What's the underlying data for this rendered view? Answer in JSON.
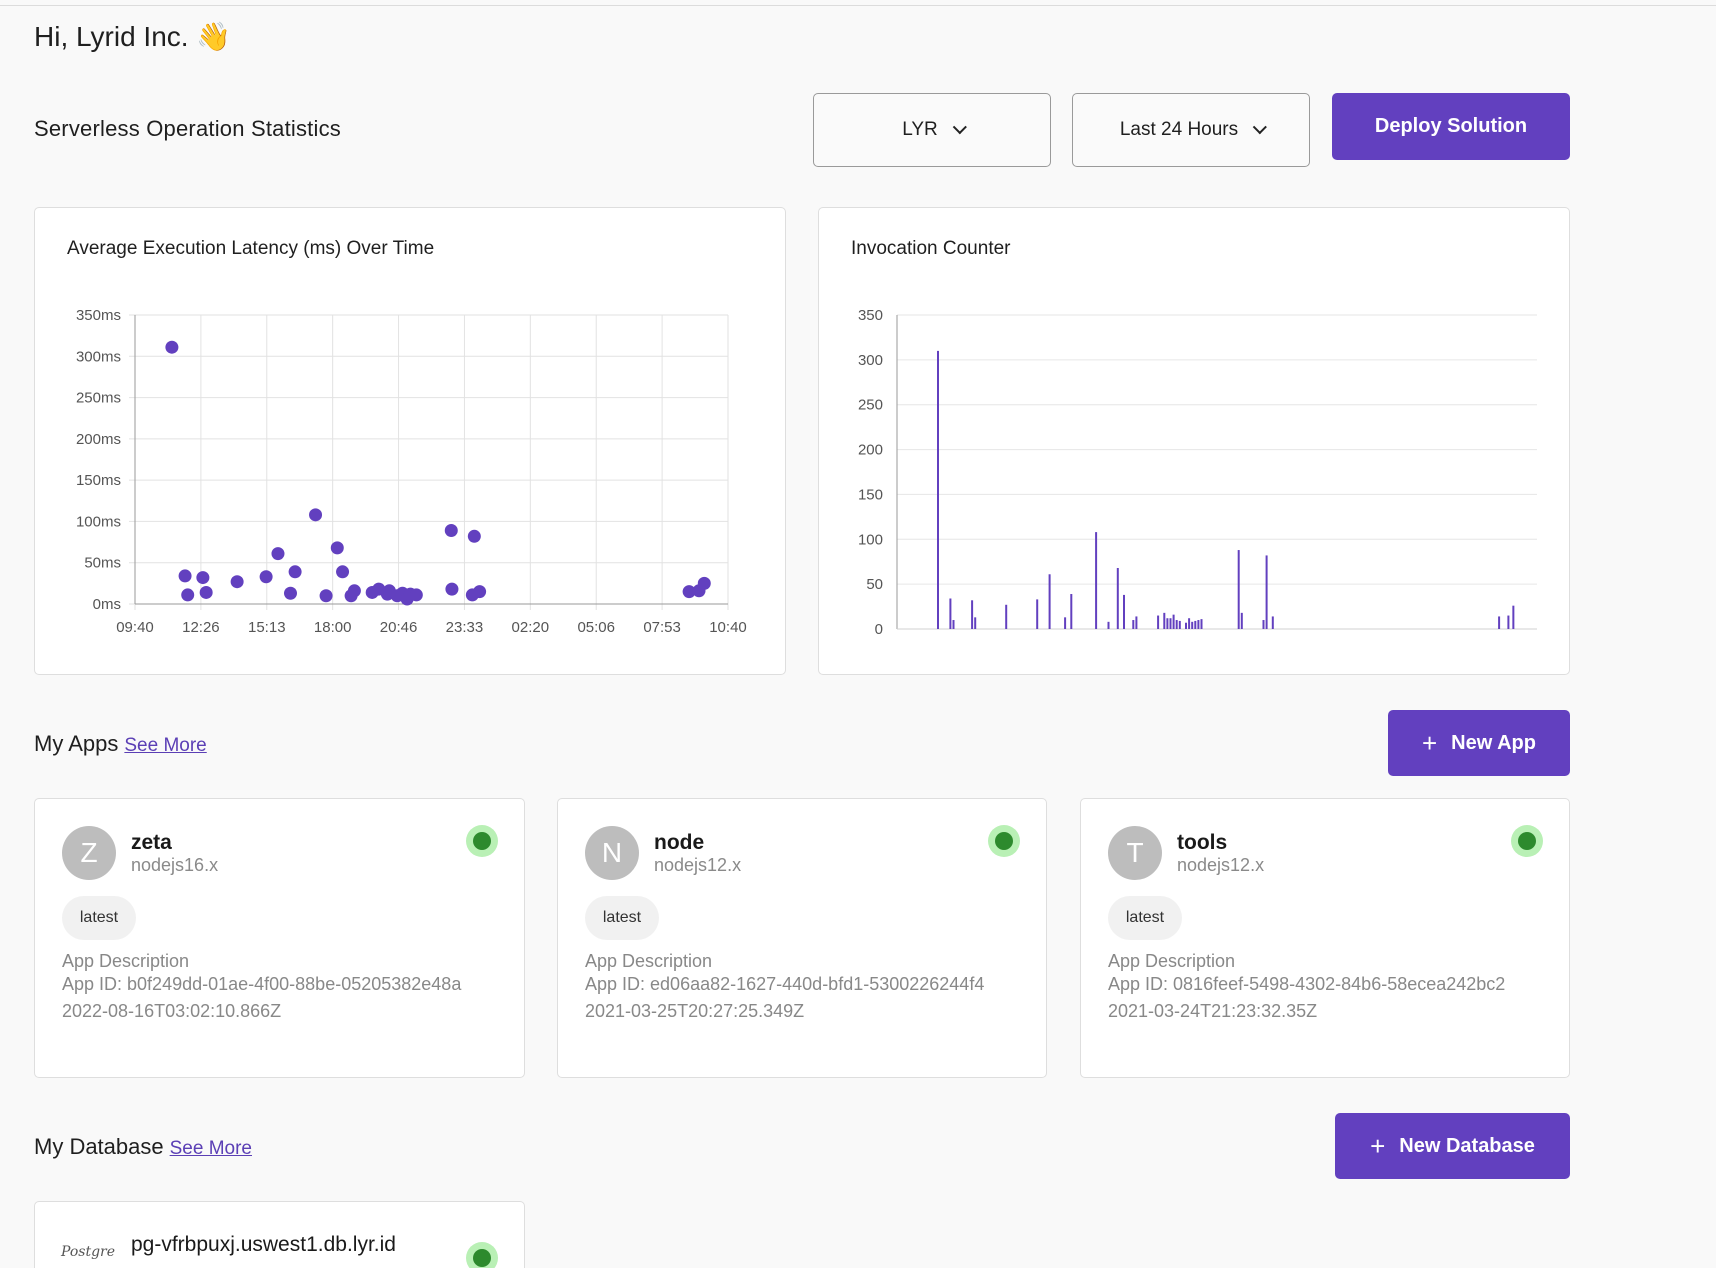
{
  "greeting": "Hi, Lyrid Inc. 👋",
  "stats_title": "Serverless Operation Statistics",
  "filters": {
    "region": "LYR",
    "range": "Last 24 Hours"
  },
  "deploy_label": "Deploy Solution",
  "colors": {
    "accent": "#6240bf",
    "status_ok": "#2d8a2d"
  },
  "chart_data": [
    {
      "type": "scatter",
      "title": "Average Execution Latency (ms) Over Time",
      "x_ticks": [
        "09:40",
        "12:26",
        "15:13",
        "18:00",
        "20:46",
        "23:33",
        "02:20",
        "05:06",
        "07:53",
        "10:40"
      ],
      "y_ticks": [
        "0ms",
        "50ms",
        "100ms",
        "150ms",
        "200ms",
        "250ms",
        "300ms",
        "350ms"
      ],
      "xlim": [
        0,
        9
      ],
      "ylim": [
        0,
        350
      ],
      "grid": true,
      "points": [
        [
          0.56,
          311
        ],
        [
          0.76,
          34
        ],
        [
          0.8,
          11
        ],
        [
          1.03,
          32
        ],
        [
          1.08,
          14
        ],
        [
          1.55,
          27
        ],
        [
          1.99,
          33
        ],
        [
          2.17,
          61
        ],
        [
          2.36,
          13
        ],
        [
          2.43,
          39
        ],
        [
          2.74,
          108
        ],
        [
          2.9,
          10
        ],
        [
          3.07,
          68
        ],
        [
          3.15,
          39
        ],
        [
          3.28,
          10
        ],
        [
          3.33,
          16
        ],
        [
          3.6,
          14
        ],
        [
          3.7,
          18
        ],
        [
          3.83,
          12
        ],
        [
          3.86,
          16
        ],
        [
          3.98,
          10
        ],
        [
          4.06,
          13
        ],
        [
          4.13,
          6
        ],
        [
          4.18,
          12
        ],
        [
          4.27,
          11
        ],
        [
          4.8,
          89
        ],
        [
          4.81,
          18
        ],
        [
          5.12,
          11
        ],
        [
          5.15,
          82
        ],
        [
          5.23,
          15
        ],
        [
          8.41,
          15
        ],
        [
          8.56,
          16
        ],
        [
          8.64,
          25
        ]
      ]
    },
    {
      "type": "bar",
      "title": "Invocation Counter",
      "y_ticks": [
        "0",
        "50",
        "100",
        "150",
        "200",
        "250",
        "300",
        "350"
      ],
      "ylim": [
        0,
        350
      ],
      "grid": true,
      "bar_count": 100,
      "bars": [
        [
          5,
          310
        ],
        [
          7,
          34
        ],
        [
          7.5,
          10
        ],
        [
          10.5,
          32
        ],
        [
          11,
          13
        ],
        [
          16,
          27
        ],
        [
          21,
          33
        ],
        [
          23,
          61
        ],
        [
          25.5,
          13
        ],
        [
          26.5,
          39
        ],
        [
          30.5,
          108
        ],
        [
          32.5,
          8
        ],
        [
          34,
          68
        ],
        [
          35,
          38
        ],
        [
          36.5,
          10
        ],
        [
          37,
          14
        ],
        [
          40.5,
          15
        ],
        [
          41.5,
          18
        ],
        [
          42,
          12
        ],
        [
          42.5,
          12
        ],
        [
          43,
          16
        ],
        [
          43.5,
          10
        ],
        [
          44,
          9
        ],
        [
          45,
          7
        ],
        [
          45.5,
          12
        ],
        [
          46,
          8
        ],
        [
          46.5,
          9
        ],
        [
          47,
          10
        ],
        [
          47.5,
          11
        ],
        [
          53.5,
          88
        ],
        [
          54,
          18
        ],
        [
          57.5,
          10
        ],
        [
          58,
          82
        ],
        [
          59,
          14
        ],
        [
          95.5,
          14
        ],
        [
          97,
          15
        ],
        [
          97.8,
          26
        ]
      ]
    }
  ],
  "apps": {
    "title": "My Apps",
    "see_more": "See More",
    "new_label": "New App",
    "items": [
      {
        "initial": "Z",
        "name": "zeta",
        "runtime": "nodejs16.x",
        "tag": "latest",
        "description": "App Description",
        "app_id": "App ID: b0f249dd-01ae-4f00-88be-05205382e48a",
        "date": "2022-08-16T03:02:10.866Z"
      },
      {
        "initial": "N",
        "name": "node",
        "runtime": "nodejs12.x",
        "tag": "latest",
        "description": "App Description",
        "app_id": "App ID: ed06aa82-1627-440d-bfd1-5300226244f4",
        "date": "2021-03-25T20:27:25.349Z"
      },
      {
        "initial": "T",
        "name": "tools",
        "runtime": "nodejs12.x",
        "tag": "latest",
        "description": "App Description",
        "app_id": "App ID: 0816feef-5498-4302-84b6-58ecea242bc2",
        "date": "2021-03-24T21:23:32.35Z"
      }
    ]
  },
  "database": {
    "title": "My Database",
    "see_more": "See More",
    "new_label": "New Database",
    "items": [
      {
        "logo": "Postgre",
        "name": "pg-vfrbpuxj.uswest1.db.lyr.id"
      }
    ]
  }
}
